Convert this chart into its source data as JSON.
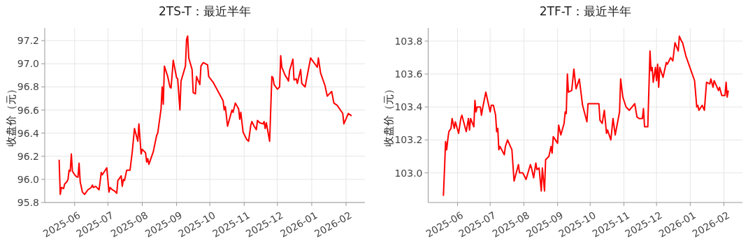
{
  "chart_data": [
    {
      "type": "line",
      "title": "2TS-T：最近半年",
      "ylabel": "收盘价（元）",
      "grid": true,
      "xlim": [
        "2025-05-05",
        "2026-02-18"
      ],
      "ylim": [
        95.8,
        97.31
      ],
      "xticks": [
        {
          "value": "2025-06-01",
          "label": "2025-06"
        },
        {
          "value": "2025-07-01",
          "label": "2025-07"
        },
        {
          "value": "2025-08-01",
          "label": "2025-08"
        },
        {
          "value": "2025-09-01",
          "label": "2025-09"
        },
        {
          "value": "2025-10-01",
          "label": "2025-10"
        },
        {
          "value": "2025-11-01",
          "label": "2025-11"
        },
        {
          "value": "2025-12-01",
          "label": "2025-12"
        },
        {
          "value": "2026-01-01",
          "label": "2026-01"
        },
        {
          "value": "2026-02-01",
          "label": "2026-02"
        }
      ],
      "yticks": [
        95.8,
        {
          "value": 96,
          "label": "96.0"
        },
        96.2,
        96.4,
        96.6,
        96.8,
        {
          "value": 97,
          "label": "97.0"
        },
        97.2
      ],
      "series": [
        {
          "color": "#ff0000",
          "x": [
            "2025-05-18",
            "2025-05-19",
            "2025-05-20",
            "2025-05-22",
            "2025-05-23",
            "2025-05-25",
            "2025-05-26",
            "2025-05-27",
            "2025-05-28",
            "2025-05-29",
            "2025-05-30",
            "2025-06-01",
            "2025-06-03",
            "2025-06-04",
            "2025-06-05",
            "2025-06-06",
            "2025-06-08",
            "2025-06-10",
            "2025-06-13",
            "2025-06-16",
            "2025-06-17",
            "2025-06-18",
            "2025-06-20",
            "2025-06-23",
            "2025-06-24",
            "2025-06-25",
            "2025-06-26",
            "2025-06-28",
            "2025-06-30",
            "2025-07-02",
            "2025-07-03",
            "2025-07-05",
            "2025-07-07",
            "2025-07-09",
            "2025-07-10",
            "2025-07-13",
            "2025-07-14",
            "2025-07-15",
            "2025-07-16",
            "2025-07-18",
            "2025-07-21",
            "2025-07-23",
            "2025-07-25",
            "2025-07-28",
            "2025-07-29",
            "2025-07-31",
            "2025-08-01",
            "2025-08-04",
            "2025-08-05",
            "2025-08-06",
            "2025-08-07",
            "2025-08-11",
            "2025-08-14",
            "2025-08-15",
            "2025-08-18",
            "2025-08-19",
            "2025-08-20",
            "2025-08-21",
            "2025-08-24",
            "2025-08-26",
            "2025-08-27",
            "2025-08-29",
            "2025-09-01",
            "2025-09-02",
            "2025-09-04",
            "2025-09-05",
            "2025-09-09",
            "2025-09-10",
            "2025-09-11",
            "2025-09-12",
            "2025-09-15",
            "2025-09-16",
            "2025-09-18",
            "2025-09-19",
            "2025-09-22",
            "2025-09-23",
            "2025-09-25",
            "2025-09-29",
            "2025-09-30",
            "2025-10-04",
            "2025-10-13",
            "2025-10-14",
            "2025-10-15",
            "2025-10-17",
            "2025-10-21",
            "2025-10-22",
            "2025-10-24",
            "2025-10-27",
            "2025-10-28",
            "2025-10-29",
            "2025-10-31",
            "2025-11-03",
            "2025-11-05",
            "2025-11-07",
            "2025-11-08",
            "2025-11-10",
            "2025-11-12",
            "2025-11-13",
            "2025-11-15",
            "2025-11-18",
            "2025-11-19",
            "2025-11-20",
            "2025-11-21",
            "2025-11-24",
            "2025-11-26",
            "2025-11-27",
            "2025-11-28",
            "2025-12-01",
            "2025-12-03",
            "2025-12-04",
            "2025-12-05",
            "2025-12-08",
            "2025-12-10",
            "2025-12-11",
            "2025-12-12",
            "2025-12-15",
            "2025-12-16",
            "2025-12-18",
            "2025-12-19",
            "2025-12-22",
            "2025-12-23",
            "2025-12-26",
            "2025-12-31",
            "2026-01-06",
            "2026-01-07",
            "2026-01-09",
            "2026-01-13",
            "2026-01-15",
            "2026-01-19",
            "2026-01-21",
            "2026-01-24",
            "2026-01-29",
            "2026-01-30",
            "2026-02-03",
            "2026-02-06"
          ],
          "values": [
            96.17,
            95.87,
            95.93,
            95.92,
            95.96,
            95.98,
            96.0,
            96.08,
            96.07,
            96.22,
            96.07,
            96.04,
            96.02,
            96.02,
            96.14,
            95.98,
            95.89,
            95.87,
            95.91,
            95.93,
            95.95,
            95.93,
            95.94,
            95.91,
            95.98,
            96.06,
            96.04,
            96.07,
            96.1,
            95.89,
            95.93,
            95.91,
            95.9,
            95.88,
            95.99,
            96.03,
            95.94,
            96.0,
            95.99,
            96.08,
            96.08,
            96.24,
            96.44,
            96.33,
            96.48,
            96.22,
            96.26,
            96.23,
            96.15,
            96.18,
            96.13,
            96.24,
            96.38,
            96.4,
            96.61,
            96.8,
            96.65,
            96.98,
            96.89,
            96.8,
            96.79,
            97.03,
            96.88,
            96.87,
            96.6,
            96.85,
            96.98,
            97.21,
            97.24,
            97.05,
            96.95,
            96.75,
            96.74,
            96.89,
            96.82,
            96.98,
            97.01,
            96.99,
            96.89,
            96.84,
            96.68,
            96.6,
            96.63,
            96.46,
            96.6,
            96.58,
            96.66,
            96.61,
            96.52,
            96.58,
            96.41,
            96.35,
            96.33,
            96.47,
            96.5,
            96.46,
            96.43,
            96.51,
            96.49,
            96.48,
            96.5,
            96.44,
            96.49,
            96.33,
            96.89,
            96.88,
            96.82,
            96.78,
            96.8,
            97.07,
            96.97,
            96.9,
            96.87,
            96.85,
            96.94,
            97.04,
            96.86,
            96.87,
            96.83,
            96.95,
            96.83,
            96.8,
            97.05,
            96.97,
            97.05,
            96.92,
            96.81,
            96.72,
            96.76,
            96.66,
            96.64,
            96.57,
            96.48,
            96.57,
            96.55
          ]
        }
      ]
    },
    {
      "type": "line",
      "title": "2TF-T：最近半年",
      "ylabel": "收盘价（元）",
      "grid": true,
      "xlim": [
        "2025-05-05",
        "2026-02-18"
      ],
      "ylim": [
        102.82,
        103.88
      ],
      "xticks": [
        {
          "value": "2025-06-01",
          "label": "2025-06"
        },
        {
          "value": "2025-07-01",
          "label": "2025-07"
        },
        {
          "value": "2025-08-01",
          "label": "2025-08"
        },
        {
          "value": "2025-09-01",
          "label": "2025-09"
        },
        {
          "value": "2025-10-01",
          "label": "2025-10"
        },
        {
          "value": "2025-11-01",
          "label": "2025-11"
        },
        {
          "value": "2025-12-01",
          "label": "2025-12"
        },
        {
          "value": "2026-01-01",
          "label": "2026-01"
        },
        {
          "value": "2026-02-01",
          "label": "2026-02"
        }
      ],
      "yticks": [
        {
          "value": 103,
          "label": "103.0"
        },
        103.2,
        103.4,
        103.6,
        103.8
      ],
      "series": [
        {
          "color": "#ff0000",
          "x": [
            "2025-05-19",
            "2025-05-20",
            "2025-05-21",
            "2025-05-22",
            "2025-05-23",
            "2025-05-24",
            "2025-05-25",
            "2025-05-26",
            "2025-05-27",
            "2025-05-28",
            "2025-05-29",
            "2025-05-30",
            "2025-06-02",
            "2025-06-04",
            "2025-06-05",
            "2025-06-09",
            "2025-06-11",
            "2025-06-12",
            "2025-06-13",
            "2025-06-16",
            "2025-06-17",
            "2025-06-18",
            "2025-06-19",
            "2025-06-22",
            "2025-06-23",
            "2025-06-24",
            "2025-06-27",
            "2025-07-01",
            "2025-07-02",
            "2025-07-04",
            "2025-07-06",
            "2025-07-07",
            "2025-07-08",
            "2025-07-09",
            "2025-07-10",
            "2025-07-14",
            "2025-07-15",
            "2025-07-17",
            "2025-07-21",
            "2025-07-23",
            "2025-07-27",
            "2025-07-28",
            "2025-07-29",
            "2025-07-31",
            "2025-08-03",
            "2025-08-07",
            "2025-08-08",
            "2025-08-10",
            "2025-08-12",
            "2025-08-13",
            "2025-08-15",
            "2025-08-17",
            "2025-08-18",
            "2025-08-20",
            "2025-08-21",
            "2025-08-24",
            "2025-08-26",
            "2025-08-27",
            "2025-08-28",
            "2025-09-01",
            "2025-09-02",
            "2025-09-04",
            "2025-09-07",
            "2025-09-08",
            "2025-09-09",
            "2025-09-10",
            "2025-09-11",
            "2025-09-14",
            "2025-09-16",
            "2025-09-18",
            "2025-09-21",
            "2025-09-24",
            "2025-09-28",
            "2025-09-29",
            "2025-10-09",
            "2025-10-10",
            "2025-10-12",
            "2025-10-14",
            "2025-10-16",
            "2025-10-17",
            "2025-10-20",
            "2025-10-22",
            "2025-10-24",
            "2025-10-28",
            "2025-10-29",
            "2025-10-31",
            "2025-11-03",
            "2025-11-06",
            "2025-11-11",
            "2025-11-13",
            "2025-11-15",
            "2025-11-17",
            "2025-11-18",
            "2025-11-19",
            "2025-11-20",
            "2025-11-23",
            "2025-11-25",
            "2025-11-26",
            "2025-11-27",
            "2025-11-28",
            "2025-11-30",
            "2025-12-01",
            "2025-12-02",
            "2025-12-03",
            "2025-12-04",
            "2025-12-07",
            "2025-12-10",
            "2025-12-11",
            "2025-12-14",
            "2025-12-16",
            "2025-12-18",
            "2025-12-21",
            "2025-12-22",
            "2025-12-24",
            "2025-12-25",
            "2025-12-28",
            "2026-01-05",
            "2026-01-07",
            "2026-01-08",
            "2026-01-09",
            "2026-01-12",
            "2026-01-14",
            "2026-01-16",
            "2026-01-19",
            "2026-01-20",
            "2026-01-22",
            "2026-01-23",
            "2026-01-27",
            "2026-01-28",
            "2026-01-30",
            "2026-02-02",
            "2026-02-03",
            "2026-02-04",
            "2026-02-05"
          ],
          "values": [
            102.86,
            103.02,
            103.19,
            103.14,
            103.2,
            103.25,
            103.26,
            103.27,
            103.33,
            103.3,
            103.27,
            103.31,
            103.24,
            103.33,
            103.35,
            103.25,
            103.33,
            103.26,
            103.33,
            103.28,
            103.44,
            103.37,
            103.4,
            103.4,
            103.35,
            103.39,
            103.49,
            103.37,
            103.41,
            103.41,
            103.35,
            103.25,
            103.27,
            103.14,
            103.16,
            103.11,
            103.16,
            103.2,
            103.14,
            102.95,
            103.05,
            103.0,
            103.0,
            103.0,
            102.96,
            103.05,
            103.03,
            102.97,
            103.06,
            103.02,
            103.03,
            102.89,
            103.03,
            102.89,
            103.08,
            103.1,
            103.16,
            103.12,
            103.22,
            103.18,
            103.29,
            103.23,
            103.3,
            103.37,
            103.36,
            103.6,
            103.49,
            103.5,
            103.63,
            103.51,
            103.57,
            103.41,
            103.31,
            103.42,
            103.42,
            103.32,
            103.3,
            103.38,
            103.24,
            103.26,
            103.2,
            103.33,
            103.23,
            103.37,
            103.57,
            103.46,
            103.4,
            103.38,
            103.42,
            103.34,
            103.33,
            103.33,
            103.33,
            103.39,
            103.28,
            103.28,
            103.74,
            103.62,
            103.64,
            103.55,
            103.64,
            103.56,
            103.66,
            103.52,
            103.64,
            103.58,
            103.67,
            103.66,
            103.7,
            103.68,
            103.79,
            103.74,
            103.83,
            103.8,
            103.79,
            103.71,
            103.56,
            103.4,
            103.41,
            103.38,
            103.41,
            103.38,
            103.55,
            103.54,
            103.57,
            103.52,
            103.56,
            103.5,
            103.52,
            103.47,
            103.47,
            103.55,
            103.46,
            103.5
          ]
        }
      ]
    }
  ]
}
